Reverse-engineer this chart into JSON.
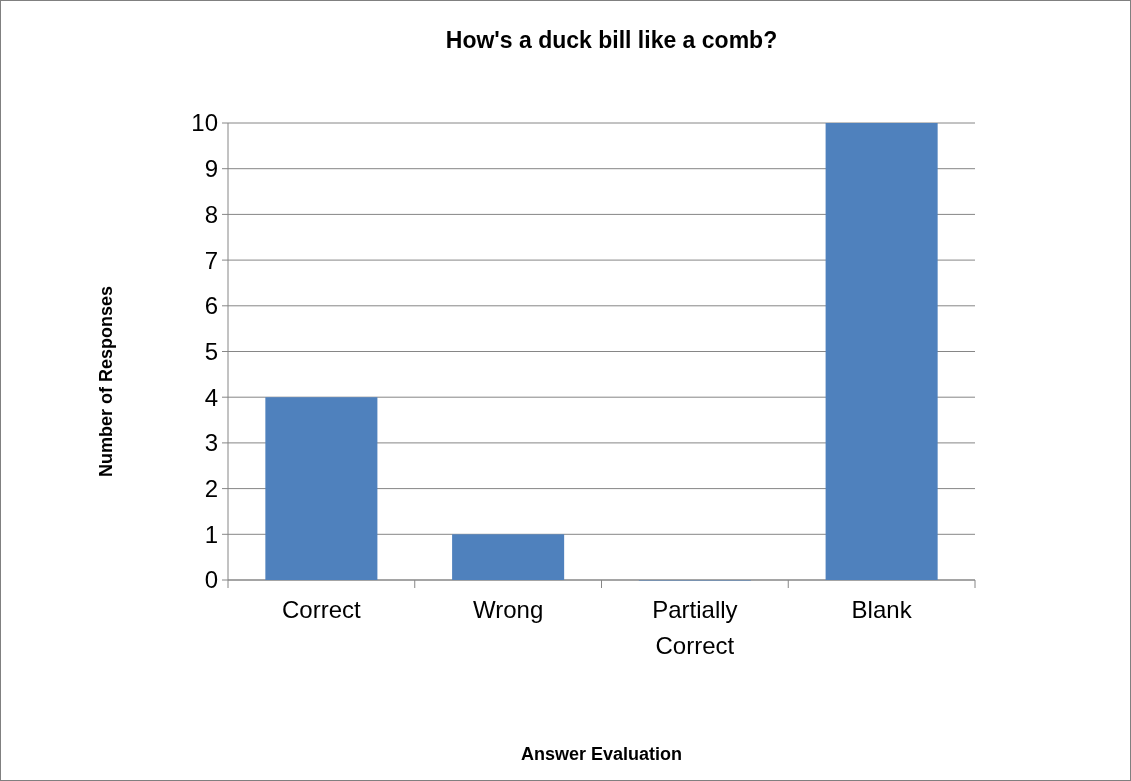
{
  "chart_data": {
    "type": "bar",
    "title": "How's a duck bill like a comb?",
    "xlabel": "Answer Evaluation",
    "ylabel": "Number of Responses",
    "categories": [
      "Correct",
      "Wrong",
      "Partially Correct",
      "Blank"
    ],
    "values": [
      4,
      1,
      0,
      10
    ],
    "color": "#4f81bd",
    "ylim": [
      0,
      10
    ],
    "yticks": [
      0,
      1,
      2,
      3,
      4,
      5,
      6,
      7,
      8,
      9,
      10
    ],
    "grid": "y"
  }
}
